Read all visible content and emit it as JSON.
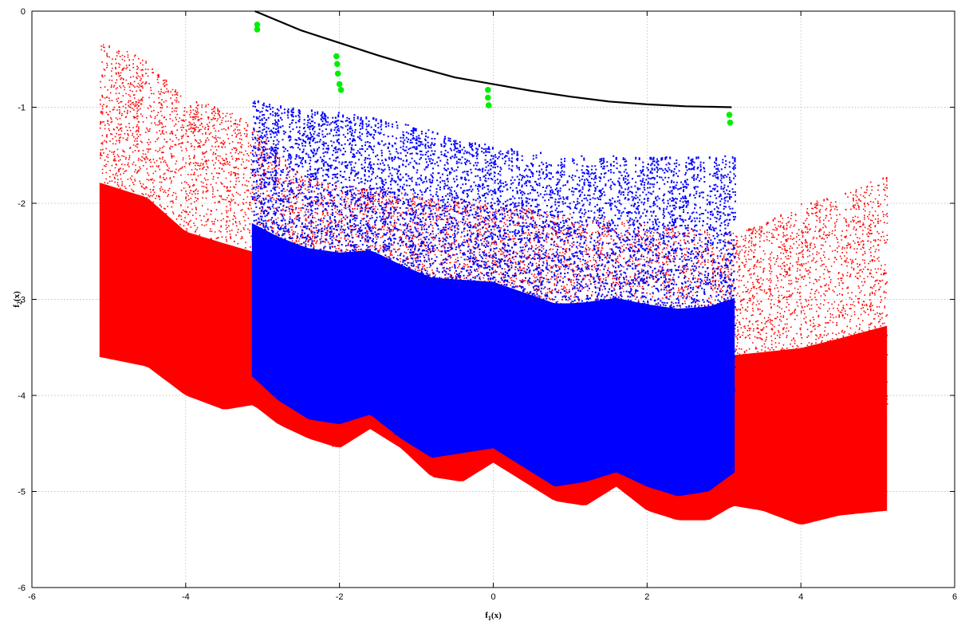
{
  "chart_data": {
    "type": "scatter",
    "title": "",
    "xlabel": {
      "base": "f",
      "sub": "1",
      "tail": "(x)"
    },
    "ylabel": {
      "base": "f",
      "sub": "2",
      "tail": "(x)"
    },
    "xlim": [
      -6,
      6
    ],
    "ylim": [
      -6,
      0
    ],
    "x_ticks": [
      -6,
      -4,
      -2,
      0,
      2,
      4,
      6
    ],
    "y_ticks": [
      0,
      -1,
      -2,
      -3,
      -4,
      -5,
      -6
    ],
    "x_tick_labels": [
      "-6",
      "-4",
      "-2",
      "0",
      "2",
      "4",
      "6"
    ],
    "y_tick_labels": [
      "0",
      "-1",
      "-2",
      "-3",
      "-4",
      "-5",
      "-6"
    ],
    "grid": true,
    "legend": "none",
    "series": [
      {
        "kind": "dense-scatter",
        "color": "#ff0000",
        "x_range": [
          -5.12,
          5.12
        ],
        "upper_boundary": [
          [
            -5.12,
            -0.3
          ],
          [
            -4.5,
            -0.5
          ],
          [
            -4.0,
            -0.9
          ],
          [
            -3.5,
            -1.0
          ],
          [
            -3.12,
            -1.2
          ],
          [
            -2.5,
            -1.7
          ],
          [
            -2.0,
            -1.8
          ],
          [
            -1.0,
            -1.9
          ],
          [
            0.0,
            -2.0
          ],
          [
            1.0,
            -2.1
          ],
          [
            2.0,
            -2.2
          ],
          [
            3.12,
            -2.3
          ],
          [
            3.5,
            -2.2
          ],
          [
            4.0,
            -2.0
          ],
          [
            4.5,
            -1.9
          ],
          [
            5.12,
            -1.7
          ]
        ],
        "lower_boundary": [
          [
            -5.12,
            -3.6
          ],
          [
            -4.5,
            -3.7
          ],
          [
            -4.0,
            -4.0
          ],
          [
            -3.5,
            -4.15
          ],
          [
            -3.12,
            -4.1
          ],
          [
            -2.8,
            -4.3
          ],
          [
            -2.4,
            -4.45
          ],
          [
            -2.0,
            -4.55
          ],
          [
            -1.6,
            -4.35
          ],
          [
            -1.2,
            -4.55
          ],
          [
            -0.8,
            -4.85
          ],
          [
            -0.4,
            -4.9
          ],
          [
            0.0,
            -4.7
          ],
          [
            0.4,
            -4.9
          ],
          [
            0.8,
            -5.1
          ],
          [
            1.2,
            -5.15
          ],
          [
            1.6,
            -4.95
          ],
          [
            2.0,
            -5.2
          ],
          [
            2.4,
            -5.3
          ],
          [
            2.8,
            -5.3
          ],
          [
            3.12,
            -5.15
          ],
          [
            3.5,
            -5.2
          ],
          [
            4.0,
            -5.35
          ],
          [
            4.5,
            -5.25
          ],
          [
            5.12,
            -5.2
          ]
        ]
      },
      {
        "kind": "dense-scatter",
        "color": "#0000ff",
        "x_range": [
          -3.14,
          3.14
        ],
        "upper_boundary": [
          [
            -3.14,
            -0.9
          ],
          [
            -2.5,
            -1.0
          ],
          [
            -2.0,
            -1.05
          ],
          [
            -1.5,
            -1.1
          ],
          [
            -1.0,
            -1.2
          ],
          [
            0.0,
            -1.4
          ],
          [
            1.0,
            -1.5
          ],
          [
            2.0,
            -1.5
          ],
          [
            3.14,
            -1.5
          ]
        ],
        "lower_boundary": [
          [
            -3.14,
            -3.8
          ],
          [
            -2.8,
            -4.05
          ],
          [
            -2.4,
            -4.25
          ],
          [
            -2.0,
            -4.3
          ],
          [
            -1.6,
            -4.2
          ],
          [
            -1.2,
            -4.45
          ],
          [
            -0.8,
            -4.65
          ],
          [
            -0.4,
            -4.6
          ],
          [
            0.0,
            -4.55
          ],
          [
            0.4,
            -4.75
          ],
          [
            0.8,
            -4.95
          ],
          [
            1.2,
            -4.9
          ],
          [
            1.6,
            -4.8
          ],
          [
            2.0,
            -4.95
          ],
          [
            2.4,
            -5.05
          ],
          [
            2.8,
            -5.0
          ],
          [
            3.14,
            -4.8
          ]
        ]
      },
      {
        "kind": "line",
        "color": "#000000",
        "points": [
          [
            -3.1,
            0.0
          ],
          [
            -2.5,
            -0.2
          ],
          [
            -2.0,
            -0.33
          ],
          [
            -1.5,
            -0.46
          ],
          [
            -1.0,
            -0.58
          ],
          [
            -0.5,
            -0.69
          ],
          [
            0.0,
            -0.76
          ],
          [
            0.5,
            -0.83
          ],
          [
            1.0,
            -0.89
          ],
          [
            1.5,
            -0.94
          ],
          [
            2.0,
            -0.97
          ],
          [
            2.5,
            -0.99
          ],
          [
            3.1,
            -1.0
          ]
        ]
      },
      {
        "kind": "markers",
        "color": "#00ee00",
        "points": [
          [
            -3.07,
            -0.14
          ],
          [
            -3.07,
            -0.19
          ],
          [
            -2.04,
            -0.47
          ],
          [
            -2.03,
            -0.55
          ],
          [
            -2.02,
            -0.65
          ],
          [
            -2.0,
            -0.76
          ],
          [
            -1.98,
            -0.82
          ],
          [
            -0.07,
            -0.82
          ],
          [
            -0.07,
            -0.9
          ],
          [
            -0.06,
            -0.98
          ],
          [
            3.07,
            -1.08
          ],
          [
            3.08,
            -1.16
          ]
        ]
      }
    ]
  }
}
